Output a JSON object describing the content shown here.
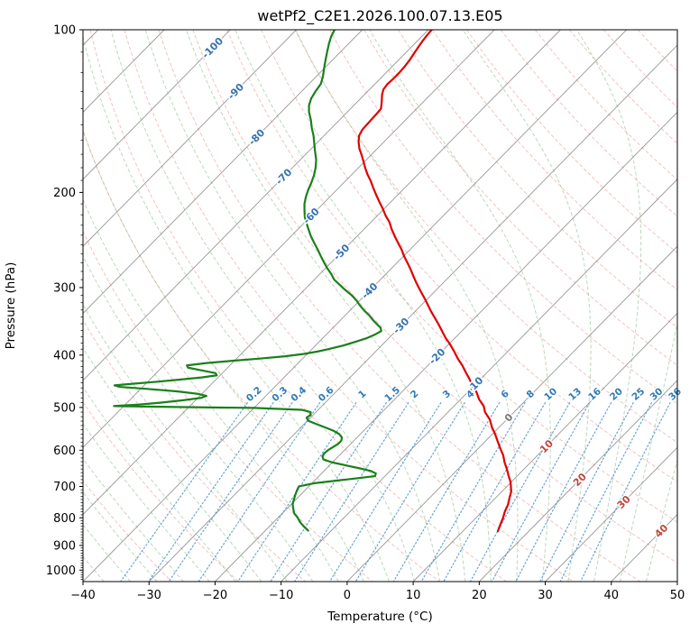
{
  "chart_data": {
    "type": "line",
    "title": "wetPf2_C2E1.2026.100.07.13.E05",
    "xlabel": "Temperature (°C)",
    "ylabel": "Pressure (hPa)",
    "projection": "skew-T log-p",
    "x_range": [
      -40,
      50
    ],
    "pressure_range": [
      100,
      1050
    ],
    "skew_factor": 35,
    "x_ticks": [
      {
        "v": -40,
        "label": "−40"
      },
      {
        "v": -30,
        "label": "−30"
      },
      {
        "v": -20,
        "label": "−20"
      },
      {
        "v": -10,
        "label": "−10"
      },
      {
        "v": 0,
        "label": "0"
      },
      {
        "v": 10,
        "label": "10"
      },
      {
        "v": 20,
        "label": "20"
      },
      {
        "v": 30,
        "label": "30"
      },
      {
        "v": 40,
        "label": "40"
      },
      {
        "v": 50,
        "label": "50"
      }
    ],
    "y_ticks": [
      {
        "v": 100,
        "label": "100"
      },
      {
        "v": 200,
        "label": "200"
      },
      {
        "v": 300,
        "label": "300"
      },
      {
        "v": 400,
        "label": "400"
      },
      {
        "v": 500,
        "label": "500"
      },
      {
        "v": 600,
        "label": "600"
      },
      {
        "v": 700,
        "label": "700"
      },
      {
        "v": 800,
        "label": "800"
      },
      {
        "v": 900,
        "label": "900"
      },
      {
        "v": 1000,
        "label": "1000"
      }
    ],
    "isotherms": {
      "from": -120,
      "to": 50,
      "step": 10
    },
    "dry_adiabats": {
      "from": -30,
      "to": 180,
      "step": 10
    },
    "moist_adiabats": {
      "from": -44,
      "to": 44,
      "step": 4
    },
    "mixing_ratio_lines": [
      0.2,
      0.3,
      0.4,
      0.6,
      1,
      1.5,
      2,
      3,
      4,
      6,
      8,
      10,
      13,
      16,
      20,
      25,
      30,
      36
    ],
    "mixing_ratio_labels": [
      "0.2",
      "0.3",
      "0.4",
      "0.6",
      "1",
      "1.5",
      "2",
      "3",
      "4",
      "6",
      "8",
      "10",
      "13",
      "16",
      "20",
      "25",
      "30",
      "36"
    ],
    "mixing_ratio_label_pressure": 472,
    "mixing_ratio_top_pressure": 490,
    "isotherm_labels": [
      {
        "label": "-100",
        "value": -100,
        "p": 108
      },
      {
        "label": "-90",
        "value": -90,
        "p": 130
      },
      {
        "label": "-80",
        "value": -80,
        "p": 158
      },
      {
        "label": "-70",
        "value": -70,
        "p": 187
      },
      {
        "label": "-60",
        "value": -60,
        "p": 221
      },
      {
        "label": "-50",
        "value": -50,
        "p": 258
      },
      {
        "label": "-40",
        "value": -40,
        "p": 304
      },
      {
        "label": "-30",
        "value": -30,
        "p": 353
      },
      {
        "label": "-20",
        "value": -20,
        "p": 402
      },
      {
        "label": "-10",
        "value": -10,
        "p": 454
      },
      {
        "label": "0",
        "value": 0,
        "p": 522
      },
      {
        "label": "10",
        "value": 10,
        "p": 590
      },
      {
        "label": "20",
        "value": 20,
        "p": 680
      },
      {
        "label": "30",
        "value": 30,
        "p": 748
      },
      {
        "label": "40",
        "value": 40,
        "p": 846
      }
    ],
    "series": [
      {
        "name": "temperature",
        "color_key": "temperature",
        "points": [
          [
            847,
            15.3
          ],
          [
            820,
            14.6
          ],
          [
            800,
            14.1
          ],
          [
            778,
            13.4
          ],
          [
            757,
            12.9
          ],
          [
            735,
            12.1
          ],
          [
            715,
            11.4
          ],
          [
            700,
            10.6
          ],
          [
            687,
            9.9
          ],
          [
            668,
            8.6
          ],
          [
            650,
            7.4
          ],
          [
            631,
            6.0
          ],
          [
            613,
            4.8
          ],
          [
            595,
            3.3
          ],
          [
            578,
            1.9
          ],
          [
            560,
            0.4
          ],
          [
            545,
            -1.0
          ],
          [
            526,
            -2.6
          ],
          [
            510,
            -4.4
          ],
          [
            497,
            -5.5
          ],
          [
            483,
            -7.2
          ],
          [
            469,
            -8.6
          ],
          [
            455,
            -10.3
          ],
          [
            442,
            -11.8
          ],
          [
            430,
            -13.3
          ],
          [
            418,
            -14.8
          ],
          [
            406,
            -16.5
          ],
          [
            394,
            -18.1
          ],
          [
            382,
            -19.8
          ],
          [
            372,
            -21.4
          ],
          [
            361,
            -23.0
          ],
          [
            351,
            -24.5
          ],
          [
            341,
            -26.1
          ],
          [
            332,
            -27.6
          ],
          [
            322,
            -29.2
          ],
          [
            313,
            -30.7
          ],
          [
            304,
            -32.3
          ],
          [
            295,
            -33.9
          ],
          [
            287,
            -35.3
          ],
          [
            279,
            -36.7
          ],
          [
            271,
            -38.2
          ],
          [
            263,
            -39.8
          ],
          [
            255,
            -41.3
          ],
          [
            248,
            -42.8
          ],
          [
            241,
            -44.3
          ],
          [
            234,
            -45.8
          ],
          [
            227,
            -47.2
          ],
          [
            221,
            -48.7
          ],
          [
            214,
            -50.3
          ],
          [
            208,
            -51.8
          ],
          [
            202,
            -53.3
          ],
          [
            196,
            -54.8
          ],
          [
            190,
            -56.3
          ],
          [
            185,
            -57.7
          ],
          [
            180,
            -59.0
          ],
          [
            176,
            -60.0
          ],
          [
            171,
            -61.3
          ],
          [
            166,
            -62.7
          ],
          [
            161,
            -63.9
          ],
          [
            157,
            -64.7
          ],
          [
            153,
            -65.1
          ],
          [
            148,
            -65.2
          ],
          [
            143,
            -65.3
          ],
          [
            140,
            -65.4
          ],
          [
            136,
            -66.3
          ],
          [
            132,
            -67.3
          ],
          [
            129,
            -67.9
          ],
          [
            126,
            -68.1
          ],
          [
            123,
            -68.0
          ],
          [
            120,
            -68.0
          ],
          [
            117,
            -68.1
          ],
          [
            114,
            -68.3
          ],
          [
            111,
            -68.6
          ],
          [
            108,
            -68.9
          ],
          [
            105,
            -69.2
          ],
          [
            102,
            -69.4
          ],
          [
            100,
            -69.5
          ]
        ]
      },
      {
        "name": "dewpoint",
        "color_key": "dewpoint",
        "points": [
          [
            845,
            -13.5
          ],
          [
            830,
            -14.8
          ],
          [
            815,
            -16.0
          ],
          [
            800,
            -17.0
          ],
          [
            785,
            -18.2
          ],
          [
            770,
            -19.0
          ],
          [
            755,
            -19.8
          ],
          [
            740,
            -20.3
          ],
          [
            725,
            -20.8
          ],
          [
            712,
            -21.2
          ],
          [
            700,
            -21.5
          ],
          [
            690,
            -19.5
          ],
          [
            680,
            -15.5
          ],
          [
            670,
            -11.5
          ],
          [
            662,
            -11.8
          ],
          [
            655,
            -13.0
          ],
          [
            648,
            -15.0
          ],
          [
            640,
            -17.5
          ],
          [
            632,
            -20.0
          ],
          [
            624,
            -21.8
          ],
          [
            616,
            -22.4
          ],
          [
            608,
            -22.6
          ],
          [
            600,
            -22.5
          ],
          [
            592,
            -22.2
          ],
          [
            584,
            -21.9
          ],
          [
            576,
            -21.9
          ],
          [
            568,
            -22.3
          ],
          [
            560,
            -23.2
          ],
          [
            552,
            -24.6
          ],
          [
            544,
            -26.4
          ],
          [
            536,
            -28.3
          ],
          [
            529,
            -29.9
          ],
          [
            522,
            -30.6
          ],
          [
            516,
            -30.4
          ],
          [
            510,
            -30.8
          ],
          [
            505,
            -32.5
          ],
          [
            501,
            -40.0
          ],
          [
            499,
            -52.0
          ],
          [
            497,
            -61.5
          ],
          [
            494,
            -58.0
          ],
          [
            490,
            -55.0
          ],
          [
            485,
            -52.0
          ],
          [
            480,
            -49.5
          ],
          [
            476,
            -49.0
          ],
          [
            472,
            -50.5
          ],
          [
            467,
            -54.0
          ],
          [
            462,
            -59.0
          ],
          [
            458,
            -63.5
          ],
          [
            455,
            -64.5
          ],
          [
            452,
            -62.0
          ],
          [
            448,
            -58.5
          ],
          [
            444,
            -55.5
          ],
          [
            440,
            -52.5
          ],
          [
            436,
            -50.5
          ],
          [
            432,
            -51.0
          ],
          [
            427,
            -53.5
          ],
          [
            422,
            -56.0
          ],
          [
            418,
            -56.5
          ],
          [
            414,
            -54.0
          ],
          [
            410,
            -50.5
          ],
          [
            406,
            -46.5
          ],
          [
            402,
            -43.0
          ],
          [
            398,
            -40.5
          ],
          [
            394,
            -38.8
          ],
          [
            390,
            -37.5
          ],
          [
            384,
            -35.8
          ],
          [
            378,
            -34.5
          ],
          [
            372,
            -33.3
          ],
          [
            366,
            -32.6
          ],
          [
            361,
            -32.2
          ],
          [
            356,
            -32.8
          ],
          [
            350,
            -34.0
          ],
          [
            344,
            -35.2
          ],
          [
            338,
            -36.3
          ],
          [
            331,
            -37.8
          ],
          [
            324,
            -39.2
          ],
          [
            317,
            -40.5
          ],
          [
            310,
            -42.0
          ],
          [
            303,
            -43.8
          ],
          [
            296,
            -45.5
          ],
          [
            290,
            -47.0
          ],
          [
            283,
            -48.3
          ],
          [
            276,
            -49.8
          ],
          [
            269,
            -51.2
          ],
          [
            262,
            -52.6
          ],
          [
            255,
            -54.0
          ],
          [
            248,
            -55.5
          ],
          [
            241,
            -57.0
          ],
          [
            234,
            -58.4
          ],
          [
            228,
            -59.6
          ],
          [
            222,
            -60.8
          ],
          [
            216,
            -61.8
          ],
          [
            210,
            -62.8
          ],
          [
            204,
            -63.6
          ],
          [
            198,
            -64.3
          ],
          [
            192,
            -64.9
          ],
          [
            186,
            -65.6
          ],
          [
            180,
            -66.5
          ],
          [
            174,
            -67.6
          ],
          [
            168,
            -69.0
          ],
          [
            162,
            -70.4
          ],
          [
            157,
            -71.6
          ],
          [
            152,
            -73.0
          ],
          [
            147,
            -74.3
          ],
          [
            142,
            -75.8
          ],
          [
            138,
            -76.8
          ],
          [
            134,
            -77.5
          ],
          [
            130,
            -77.9
          ],
          [
            126,
            -78.2
          ],
          [
            122,
            -79.0
          ],
          [
            118,
            -80.0
          ],
          [
            114,
            -81.0
          ],
          [
            110,
            -82.0
          ],
          [
            106,
            -83.0
          ],
          [
            103,
            -83.7
          ],
          [
            100,
            -84.2
          ]
        ]
      }
    ],
    "colors": {
      "temperature": "#e00000",
      "dewpoint": "#1a801a",
      "isotherm": "#8c8c8c",
      "isotherm_label_neg": "#3572b0",
      "isotherm_label_zero": "#777777",
      "isotherm_label_pos": "#c0453b",
      "dry_adiabat": "#e2938a",
      "moist_adiabat": "#8cbf8c",
      "mixing_ratio": "#4d94c9",
      "mixing_label": "#2f7bb6",
      "axis": "#000000"
    },
    "legend": "none",
    "grid": "skew-t background lines"
  }
}
